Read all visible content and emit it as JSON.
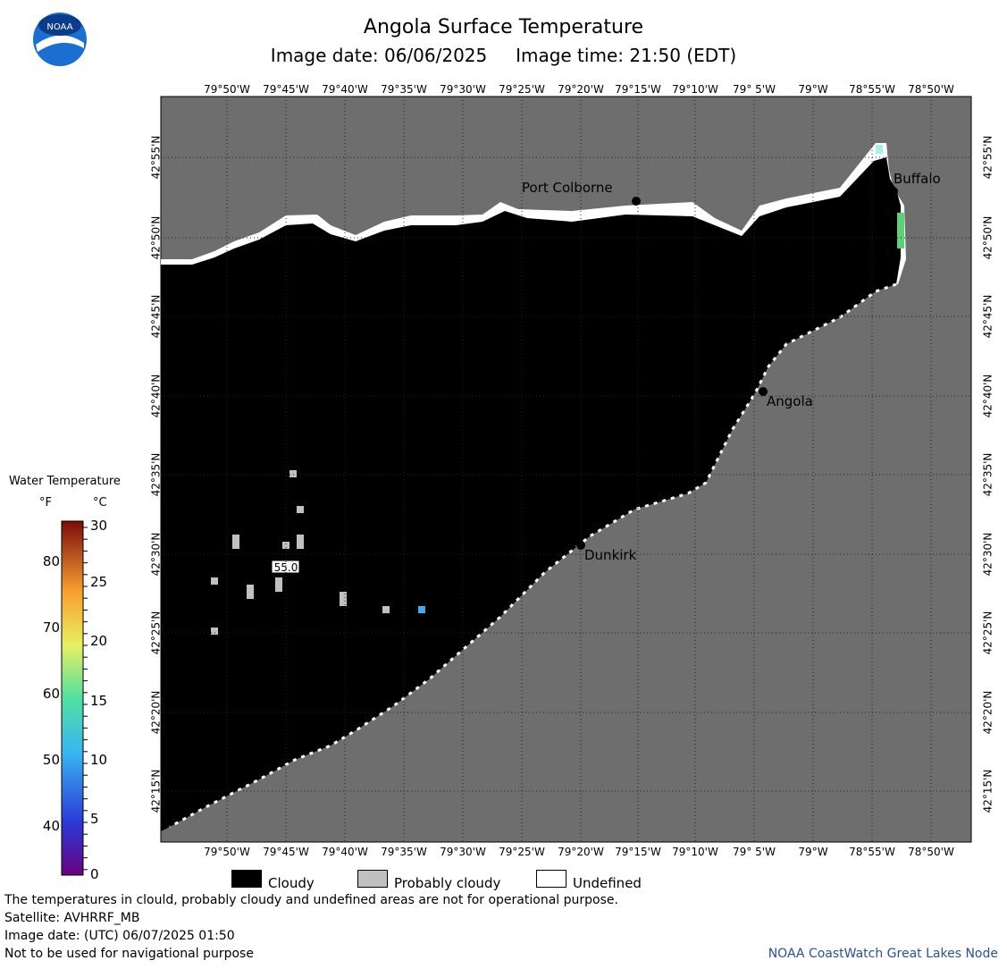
{
  "header": {
    "title": "Angola Surface Temperature",
    "image_date": "Image date: 06/06/2025",
    "image_time": "Image time: 21:50 (EDT)"
  },
  "logo": {
    "text": "NOAA"
  },
  "map": {
    "lon_labels": [
      "79°50'W",
      "79°45'W",
      "79°40'W",
      "79°35'W",
      "79°30'W",
      "79°25'W",
      "79°20'W",
      "79°15'W",
      "79°10'W",
      "79° 5'W",
      "79°W",
      "78°55'W",
      "78°50'W"
    ],
    "lat_labels": [
      "42°55'N",
      "42°50'N",
      "42°45'N",
      "42°40'N",
      "42°35'N",
      "42°30'N",
      "42°25'N",
      "42°20'N",
      "42°15'N"
    ],
    "cities": [
      {
        "name": "Port Colborne"
      },
      {
        "name": "Buffalo"
      },
      {
        "name": "Angola"
      },
      {
        "name": "Dunkirk"
      }
    ],
    "sample_value": "55.0",
    "colors": {
      "land": "#6e6e6e",
      "cloudy": "#000000",
      "undefined": "#ffffff",
      "probably_cloudy": "#c0c0c0"
    }
  },
  "legend": {
    "title": "Water Temperature",
    "unit_f": "°F",
    "unit_c": "°C",
    "f_ticks": [
      "80",
      "70",
      "60",
      "50",
      "40"
    ],
    "c_ticks": [
      "30",
      "25",
      "20",
      "15",
      "10",
      "5",
      "0"
    ]
  },
  "key": {
    "cloudy": "Cloudy",
    "probably_cloudy": "Probably cloudy",
    "undefined": "Undefined"
  },
  "footer": {
    "disclaimer": "The temperatures in clould, probably cloudy and undefined areas are not for operational purpose.",
    "satellite": "Satellite: AVHRRF_MB",
    "utc_date": "Image date: (UTC) 06/07/2025  01:50",
    "navigation": "Not to be used for navigational purpose",
    "credit": "NOAA CoastWatch Great Lakes Node"
  }
}
